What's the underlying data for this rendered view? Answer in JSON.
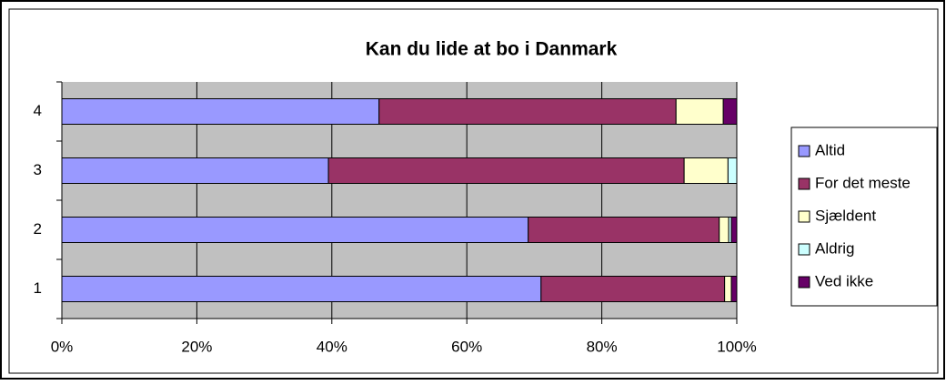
{
  "chart_data": {
    "type": "stacked-barh",
    "title": "Kan du lide at bo i Danmark",
    "categories": [
      "1",
      "2",
      "3",
      "4"
    ],
    "series": [
      {
        "name": "Altid",
        "color": "#9999ff",
        "values": [
          71.0,
          69.1,
          39.5,
          47
        ]
      },
      {
        "name": "For det meste",
        "color": "#993366",
        "values": [
          27.2,
          28.3,
          52.7,
          44
        ]
      },
      {
        "name": "Sjældent",
        "color": "#ffffcc",
        "values": [
          1.0,
          1.4,
          6.5,
          7
        ]
      },
      {
        "name": "Aldrig",
        "color": "#ccffff",
        "values": [
          0,
          0.4,
          1.3,
          0
        ]
      },
      {
        "name": "Ved ikke",
        "color": "#660066",
        "values": [
          0.8,
          0.8,
          0,
          2
        ]
      }
    ],
    "xlim": [
      0,
      100
    ],
    "xticks": [
      {
        "value": 0,
        "label": "0%"
      },
      {
        "value": 20,
        "label": "20%"
      },
      {
        "value": 40,
        "label": "40%"
      },
      {
        "value": 60,
        "label": "60%"
      },
      {
        "value": 80,
        "label": "80%"
      },
      {
        "value": 100,
        "label": "100%"
      }
    ],
    "grid": true,
    "legend": "right"
  }
}
